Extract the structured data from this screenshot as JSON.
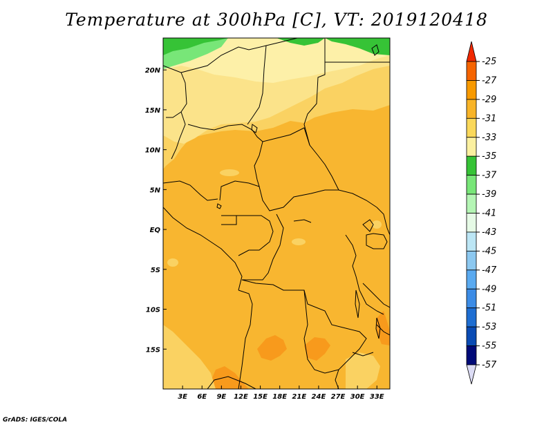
{
  "title": "Temperature at 300hPa [C], VT: 2019120418",
  "credit": "GrADS: IGES/COLA",
  "map": {
    "lon_range": [
      0,
      35
    ],
    "lat_range": [
      -20,
      24
    ],
    "lon_ticks": [
      {
        "value": 3,
        "label": "3E"
      },
      {
        "value": 6,
        "label": "6E"
      },
      {
        "value": 9,
        "label": "9E"
      },
      {
        "value": 12,
        "label": "12E"
      },
      {
        "value": 15,
        "label": "15E"
      },
      {
        "value": 18,
        "label": "18E"
      },
      {
        "value": 21,
        "label": "21E"
      },
      {
        "value": 24,
        "label": "24E"
      },
      {
        "value": 27,
        "label": "27E"
      },
      {
        "value": 30,
        "label": "30E"
      },
      {
        "value": 33,
        "label": "33E"
      }
    ],
    "lat_ticks": [
      {
        "value": 20,
        "label": "20N"
      },
      {
        "value": 15,
        "label": "15N"
      },
      {
        "value": 10,
        "label": "10N"
      },
      {
        "value": 5,
        "label": "5N"
      },
      {
        "value": 0,
        "label": "EQ"
      },
      {
        "value": -5,
        "label": "5S"
      },
      {
        "value": -10,
        "label": "10S"
      },
      {
        "value": -15,
        "label": "15S"
      }
    ]
  },
  "colorbar": {
    "labels": [
      "-25",
      "-27",
      "-29",
      "-31",
      "-33",
      "-35",
      "-37",
      "-39",
      "-41",
      "-43",
      "-45",
      "-47",
      "-49",
      "-51",
      "-53",
      "-55",
      "-57"
    ],
    "colors": [
      "#f02800",
      "#f56400",
      "#f89a00",
      "#f8b428",
      "#fad85a",
      "#fbf0a0",
      "#36c336",
      "#78e678",
      "#b4f5b4",
      "#e6fae6",
      "#bce6f5",
      "#8cc8f0",
      "#5aaaf0",
      "#3c8ce6",
      "#1e6ed2",
      "#0a4bb4",
      "#000a78",
      "#dcdcf5"
    ]
  },
  "fields": {
    "colors": {
      "band_33_31": "#fbe38a",
      "band_31_29": "#fad262",
      "band_29_27": "#f8b630",
      "band_27_25": "#f89a1c",
      "band_35_33": "#fdf6b4",
      "band_37_35": "#78e678",
      "band_39_37": "#36c336"
    }
  }
}
